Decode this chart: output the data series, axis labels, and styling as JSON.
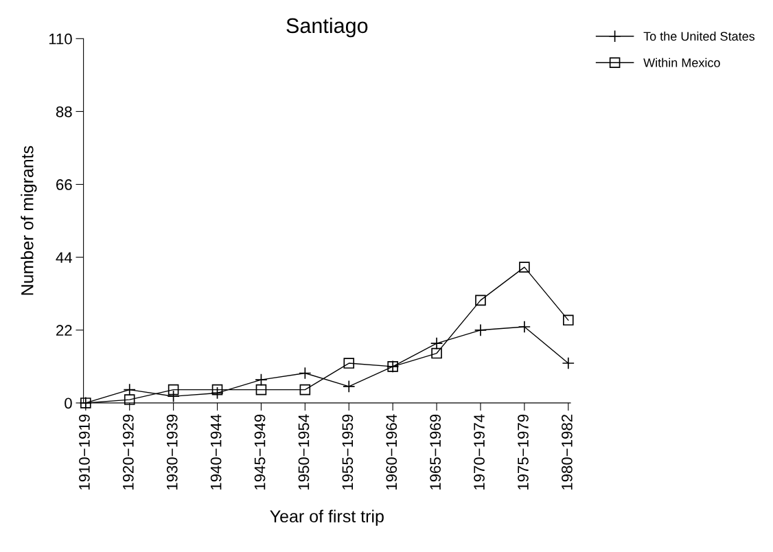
{
  "chart_data": {
    "type": "line",
    "title": "Santiago",
    "xlabel": "Year of first trip",
    "ylabel": "Number of migrants",
    "categories": [
      "1910−1919",
      "1920−1929",
      "1930−1939",
      "1940−1944",
      "1945−1949",
      "1950−1954",
      "1955−1959",
      "1960−1964",
      "1965−1969",
      "1970−1974",
      "1975−1979",
      "1980−1982"
    ],
    "series": [
      {
        "name": "To the United States",
        "color": "#000000",
        "marker": "cross",
        "values": [
          0,
          4,
          2,
          3,
          7,
          9,
          5,
          11,
          18,
          22,
          23,
          12
        ]
      },
      {
        "name": "Within Mexico",
        "color": "#000000",
        "marker": "square",
        "values": [
          0,
          1,
          4,
          4,
          4,
          4,
          12,
          11,
          15,
          31,
          41,
          25
        ]
      }
    ],
    "ylim": [
      0,
      110
    ],
    "yticks": [
      0,
      22,
      44,
      66,
      88,
      110
    ],
    "grid": false,
    "legend": "top right",
    "line_style": "solid"
  }
}
